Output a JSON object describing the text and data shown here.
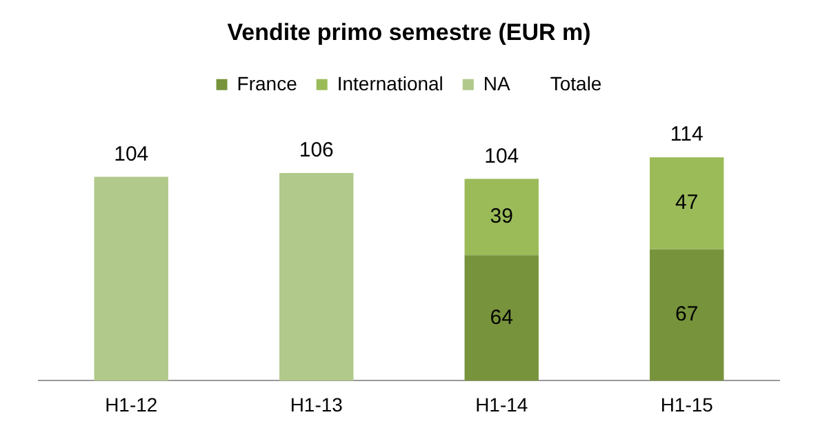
{
  "chart_data": {
    "type": "bar",
    "title": "Vendite primo semestre (EUR m)",
    "stacked": true,
    "legend": "top",
    "tick_labels": "x",
    "grid": false,
    "categories": [
      "H1-12",
      "H1-13",
      "H1-14",
      "H1-15"
    ],
    "series": [
      {
        "name": "France",
        "color": "#77933c",
        "values": [
          null,
          null,
          64,
          67
        ],
        "value_labels": [
          null,
          null,
          "64",
          "67"
        ]
      },
      {
        "name": "International",
        "color": "#9bbb59",
        "values": [
          null,
          null,
          39,
          47
        ],
        "value_labels": [
          null,
          null,
          "39",
          "47"
        ]
      },
      {
        "name": "NA",
        "color": "#b1c98a",
        "values": [
          104,
          106,
          null,
          null
        ]
      },
      {
        "name": "Totale",
        "values": [
          null,
          null,
          null,
          null
        ]
      }
    ],
    "totals": [
      "104",
      "106",
      "104",
      "114"
    ]
  }
}
